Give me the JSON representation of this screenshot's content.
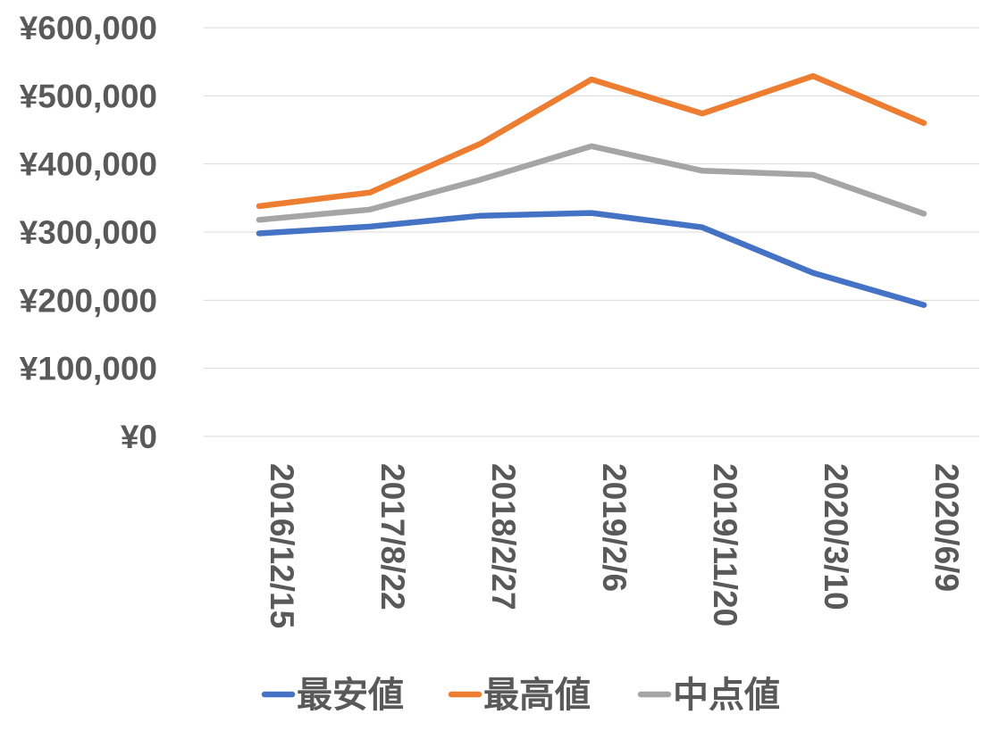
{
  "chart_data": {
    "type": "line",
    "x": [
      "2016/12/15",
      "2017/8/22",
      "2018/2/27",
      "2019/2/6",
      "2019/11/20",
      "2020/3/10",
      "2020/6/9"
    ],
    "series": [
      {
        "name": "最安値",
        "color": "#4472C4",
        "values": [
          298000,
          308000,
          324000,
          328000,
          307000,
          240000,
          193000
        ]
      },
      {
        "name": "最高値",
        "color": "#ED7D31",
        "values": [
          338000,
          358000,
          430000,
          524000,
          474000,
          529000,
          460000
        ]
      },
      {
        "name": "中点値",
        "color": "#A5A5A5",
        "values": [
          318000,
          333000,
          377000,
          426000,
          390000,
          384000,
          327000
        ]
      }
    ],
    "yticks": [
      "¥0",
      "¥100,000",
      "¥200,000",
      "¥300,000",
      "¥400,000",
      "¥500,000",
      "¥600,000"
    ],
    "ylim": [
      0,
      600000
    ],
    "grid": true,
    "legend": "bottom"
  }
}
